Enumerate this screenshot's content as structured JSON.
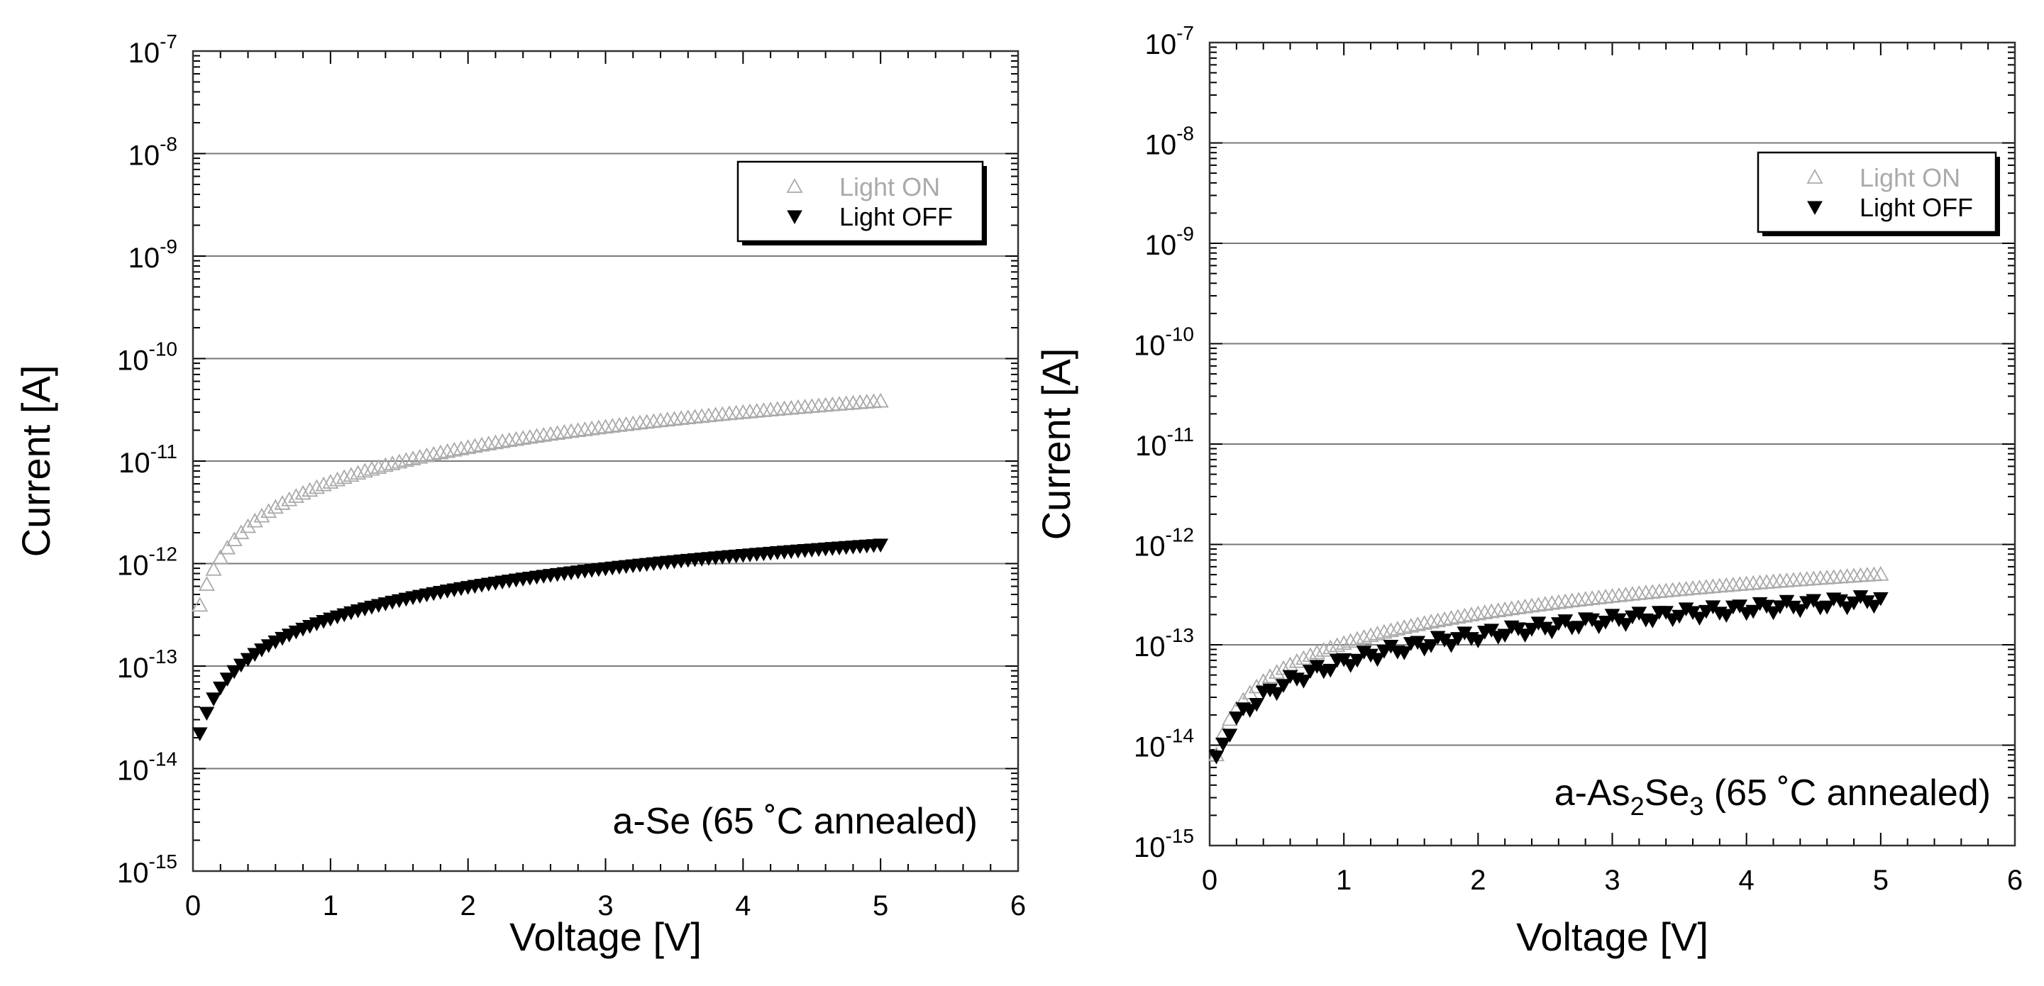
{
  "chart_data": [
    {
      "type": "scatter",
      "annotation": "a-Se (65 ˚C annealed)",
      "annotation_parts": [
        {
          "text": "a-Se (65 ˚C annealed)",
          "sub": false
        }
      ],
      "xlabel": "Voltage [V]",
      "ylabel": "Current [A]",
      "xlim": [
        0,
        6
      ],
      "ylim_exp": [
        -15,
        -7
      ],
      "yscale": "log",
      "grid": "horizontal",
      "legend_position": "top-right",
      "x_ticks": [
        "0",
        "1",
        "2",
        "3",
        "4",
        "5",
        "6"
      ],
      "y_tick_bases": [
        "10",
        "10",
        "10",
        "10",
        "10",
        "10",
        "10",
        "10",
        "10"
      ],
      "y_tick_exps": [
        "-15",
        "-14",
        "-13",
        "-12",
        "-11",
        "-10",
        "-9",
        "-8",
        "-7"
      ],
      "series": [
        {
          "name": "Light ON",
          "color": "#aaaaaa",
          "marker": "triangle-up-open",
          "model": {
            "a": 6e-12,
            "p": 1.15,
            "b": 2e-13
          }
        },
        {
          "name": "Light OFF",
          "color": "#000000",
          "marker": "triangle-down-filled",
          "model": {
            "a": 2.8e-13,
            "p": 1.05,
            "b": 1e-14
          }
        }
      ]
    },
    {
      "type": "scatter",
      "annotation": "a-As2Se3 (65 ˚C annealed)",
      "annotation_parts": [
        {
          "text": "a-As",
          "sub": false
        },
        {
          "text": "2",
          "sub": true
        },
        {
          "text": "Se",
          "sub": false
        },
        {
          "text": "3",
          "sub": true
        },
        {
          "text": " (65 ˚C annealed)",
          "sub": false
        }
      ],
      "xlabel": "Voltage [V]",
      "ylabel": "Current [A]",
      "xlim": [
        0,
        6
      ],
      "ylim_exp": [
        -15,
        -7
      ],
      "yscale": "log",
      "grid": "horizontal",
      "legend_position": "top-right",
      "x_ticks": [
        "0",
        "1",
        "2",
        "3",
        "4",
        "5",
        "6"
      ],
      "y_tick_bases": [
        "10",
        "10",
        "10",
        "10",
        "10",
        "10",
        "10",
        "10",
        "10"
      ],
      "y_tick_exps": [
        "-15",
        "-14",
        "-13",
        "-12",
        "-11",
        "-10",
        "-9",
        "-8",
        "-7"
      ],
      "series": [
        {
          "name": "Light ON",
          "color": "#aaaaaa",
          "marker": "triangle-up-open",
          "model": {
            "a": 1e-13,
            "p": 1.0,
            "b": 3e-15
          }
        },
        {
          "name": "Light OFF",
          "color": "#000000",
          "marker": "triangle-down-filled",
          "model": {
            "a": 6.5e-14,
            "p": 0.9,
            "b": 2.5e-15
          }
        }
      ]
    }
  ]
}
